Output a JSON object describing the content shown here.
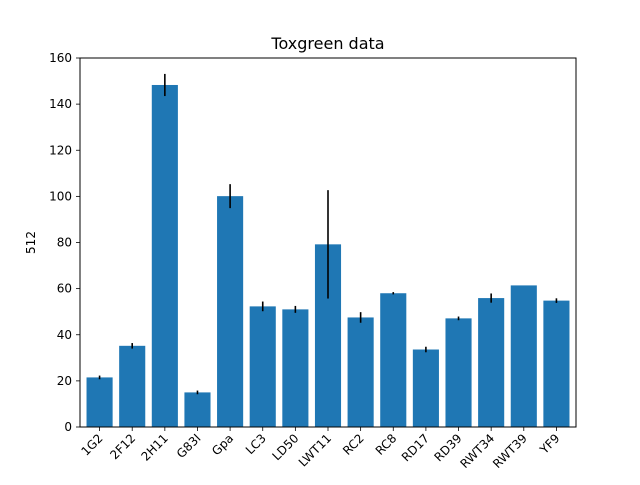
{
  "chart_data": {
    "type": "bar",
    "title": "Toxgreen data",
    "xlabel": "",
    "ylabel": "512",
    "ylim": [
      0,
      160
    ],
    "yticks": [
      0,
      20,
      40,
      60,
      80,
      100,
      120,
      140,
      160
    ],
    "grid": false,
    "bar_color": "#1f77b4",
    "error_color": "#000000",
    "categories": [
      "1G2",
      "2F12",
      "2H11",
      "G83I",
      "Gpa",
      "LC3",
      "LD50",
      "LWT11",
      "RC2",
      "RC8",
      "RD17",
      "RD39",
      "RWT34",
      "RWT39",
      "YF9"
    ],
    "values": [
      21.5,
      35.2,
      148.3,
      15.0,
      100.1,
      52.3,
      51.0,
      79.2,
      47.5,
      58.0,
      33.6,
      47.1,
      55.9,
      61.4,
      54.8
    ],
    "errors": [
      0.8,
      1.2,
      4.8,
      0.8,
      5.2,
      2.1,
      1.5,
      23.5,
      2.3,
      0.5,
      1.2,
      0.8,
      2.0,
      0.0,
      1.0
    ]
  }
}
